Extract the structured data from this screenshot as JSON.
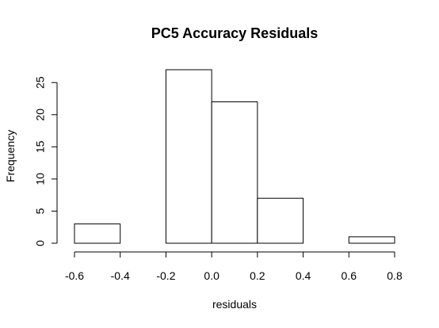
{
  "chart_data": {
    "type": "histogram",
    "title": "PC5 Accuracy Residuals",
    "xlabel": "residuals",
    "ylabel": "Frequency",
    "bins": [
      {
        "start": -0.6,
        "end": -0.4,
        "count": 3
      },
      {
        "start": -0.4,
        "end": -0.2,
        "count": 0
      },
      {
        "start": -0.2,
        "end": 0.0,
        "count": 27
      },
      {
        "start": 0.0,
        "end": 0.2,
        "count": 22
      },
      {
        "start": 0.2,
        "end": 0.4,
        "count": 7
      },
      {
        "start": 0.4,
        "end": 0.6,
        "count": 0
      },
      {
        "start": 0.6,
        "end": 0.8,
        "count": 1
      }
    ],
    "xlim": [
      -0.6,
      0.8
    ],
    "ylim": [
      0,
      27
    ],
    "x_ticks": [
      -0.6,
      -0.4,
      -0.2,
      0.0,
      0.2,
      0.4,
      0.6,
      0.8
    ],
    "x_tick_labels": [
      "-0.6",
      "-0.4",
      "-0.2",
      "0.0",
      "0.2",
      "0.4",
      "0.6",
      "0.8"
    ],
    "y_ticks": [
      0,
      5,
      10,
      15,
      20,
      25
    ],
    "y_tick_labels": [
      "0",
      "5",
      "10",
      "15",
      "20",
      "25"
    ],
    "grid": false,
    "legend": "none"
  }
}
